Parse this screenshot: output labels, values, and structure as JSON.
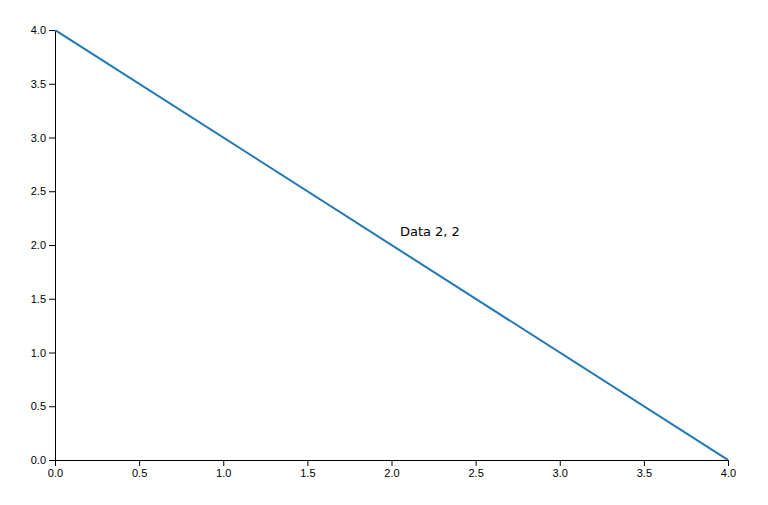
{
  "chart_data": {
    "type": "line",
    "x": [
      0,
      4
    ],
    "values": [
      4,
      0
    ],
    "color": "#1f77b4",
    "annotations": [
      {
        "text": "Data 2, 2",
        "x": 2.05,
        "y": 2.08
      }
    ],
    "xlim": [
      0.0,
      4.0
    ],
    "ylim": [
      0.0,
      4.0
    ],
    "xticks": [
      {
        "value": 0,
        "label": "0.0"
      },
      0.5,
      {
        "value": 1,
        "label": "1.0"
      },
      1.5,
      {
        "value": 2,
        "label": "2.0"
      },
      2.5,
      {
        "value": 3,
        "label": "3.0"
      },
      3.5,
      {
        "value": 4,
        "label": "4.0"
      }
    ],
    "yticks": [
      {
        "value": 0,
        "label": "0.0"
      },
      0.5,
      {
        "value": 1,
        "label": "1.0"
      },
      1.5,
      {
        "value": 2,
        "label": "2.0"
      },
      2.5,
      {
        "value": 3,
        "label": "3.0"
      },
      3.5,
      {
        "value": 4,
        "label": "4.0"
      }
    ],
    "grid": false
  }
}
